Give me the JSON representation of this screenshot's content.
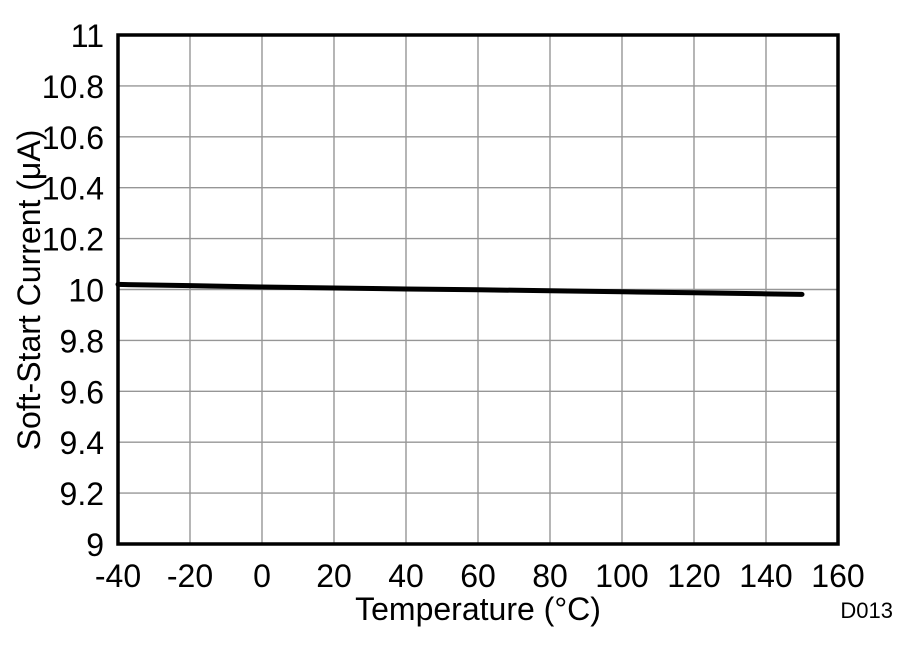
{
  "chart_data": {
    "type": "line",
    "title": "",
    "xlabel": "Temperature (°C)",
    "ylabel": "Soft-Start Current (μA)",
    "code": "D013",
    "xlim": [
      -40,
      160
    ],
    "ylim": [
      9,
      11
    ],
    "xticks": [
      -40,
      -20,
      0,
      20,
      40,
      60,
      80,
      100,
      120,
      140,
      160
    ],
    "xtick_labels": [
      "-40",
      "-20",
      "0",
      "20",
      "40",
      "60",
      "80",
      "100",
      "120",
      "140",
      "160"
    ],
    "yticks": [
      9,
      9.2,
      9.4,
      9.6,
      9.8,
      10,
      10.2,
      10.4,
      10.6,
      10.8,
      11
    ],
    "ytick_labels": [
      "9",
      "9.2",
      "9.4",
      "9.6",
      "9.8",
      "10",
      "10.2",
      "10.4",
      "10.6",
      "10.8",
      "11"
    ],
    "grid": true,
    "legend_position": "none",
    "series": [
      {
        "name": "Soft-Start Current",
        "color": "#000000",
        "line_width": 5,
        "x": [
          -40,
          -20,
          0,
          20,
          40,
          60,
          80,
          100,
          120,
          140,
          150
        ],
        "y": [
          10.02,
          10.015,
          10.01,
          10.006,
          10.002,
          9.999,
          9.995,
          9.991,
          9.987,
          9.983,
          9.981
        ]
      }
    ],
    "colors": {
      "grid": "#969696",
      "frame": "#000000",
      "code_text": "#9a9ea3",
      "background": "#ffffff"
    }
  }
}
